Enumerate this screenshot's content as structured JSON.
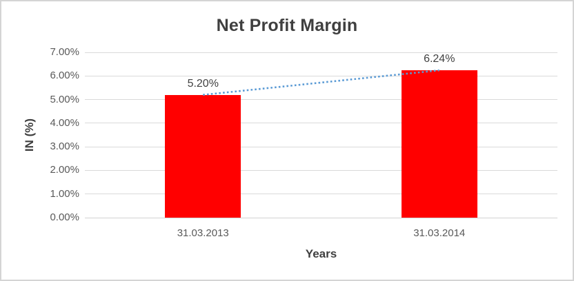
{
  "chart_data": {
    "type": "bar",
    "title": "Net Profit Margin",
    "categories": [
      "31.03.2013",
      "31.03.2014"
    ],
    "values": [
      5.2,
      6.24
    ],
    "data_labels": [
      "5.20%",
      "6.24%"
    ],
    "xlabel": "Years",
    "ylabel": "IN (%)",
    "ylim": [
      0,
      7
    ],
    "ytick_labels": [
      "0.00%",
      "1.00%",
      "2.00%",
      "3.00%",
      "4.00%",
      "5.00%",
      "6.00%",
      "7.00%"
    ],
    "grid": true,
    "legend": false,
    "bar_color": "#FF0000",
    "trendline": {
      "type": "linear",
      "style": "dotted",
      "color": "#5B9BD5"
    },
    "colors": {
      "title": "#3F3F3F",
      "axis_title": "#3F3F3F",
      "tick_label": "#595959",
      "data_label": "#404040",
      "gridline": "#D9D9D9",
      "axis_line": "#D2D2D2",
      "border": "#D4D4D4",
      "background": "#FFFFFF"
    }
  }
}
